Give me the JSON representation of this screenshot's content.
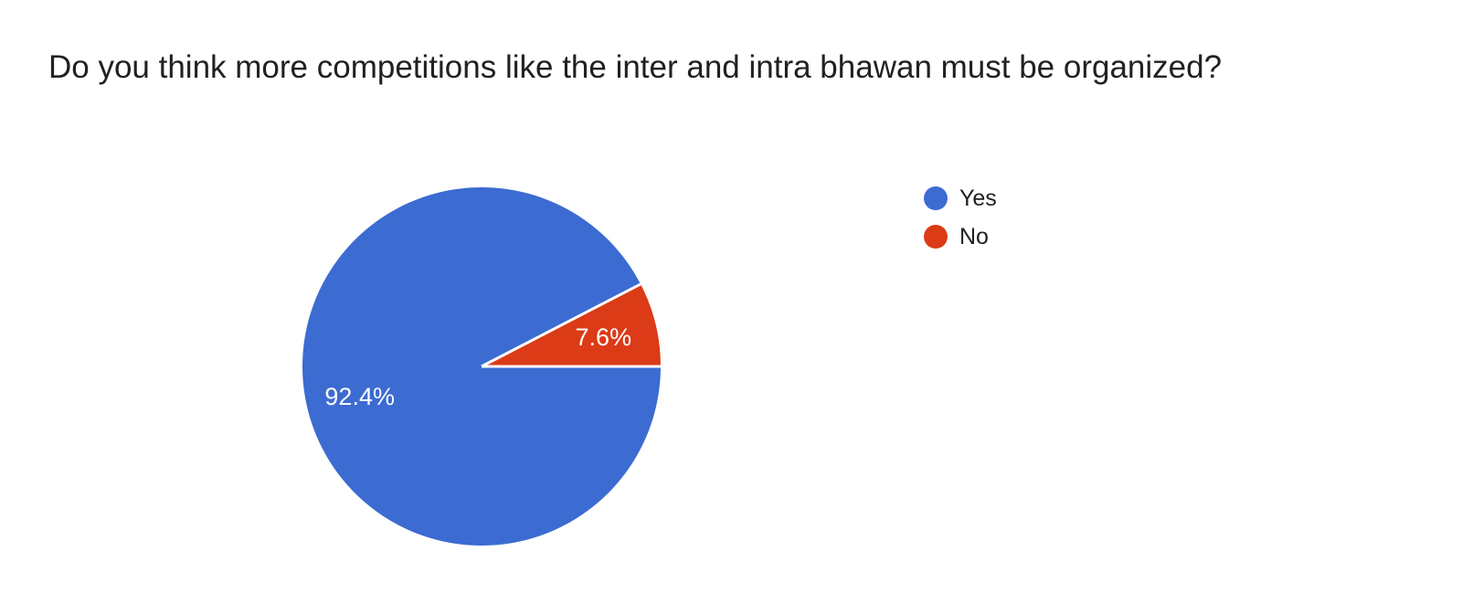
{
  "question": {
    "title": "Do you think more competitions like the inter and intra bhawan must be organized?"
  },
  "chart_data": {
    "type": "pie",
    "title": "Do you think more competitions like the inter and intra bhawan must be organized?",
    "categories": [
      "Yes",
      "No"
    ],
    "values": [
      92.4,
      7.6
    ],
    "slice_labels": [
      "92.4%",
      "7.6%"
    ],
    "colors": [
      "#3c6bd2",
      "#db3b17"
    ],
    "slice_label_color": "#ffffff",
    "separator_color": "#ffffff",
    "start_angle_deg": 0,
    "direction": "clockwise",
    "legend_position": "right",
    "legend": [
      {
        "label": "Yes",
        "color": "#3c6bd2"
      },
      {
        "label": "No",
        "color": "#db3b17"
      }
    ]
  }
}
